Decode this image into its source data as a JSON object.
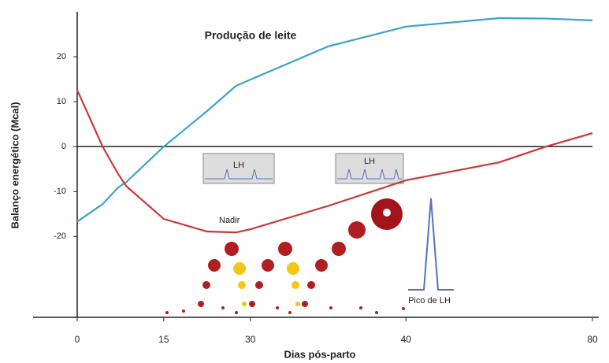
{
  "chart_data": {
    "type": "line",
    "annotations": {
      "title": "Produção de leite",
      "nadir": "Nadir",
      "lh_left": "LH",
      "lh_right": "LH",
      "lh_peak": "Pico de LH"
    },
    "y_label": "Balanço energético (Mcal)",
    "x_label": "Dias pós-parto",
    "x": [
      0,
      4.4,
      7.1,
      8.5,
      15,
      22.5,
      27.5,
      30,
      35,
      40,
      60,
      70,
      80
    ],
    "series": [
      {
        "color": "#3ba3c9",
        "values": [
          -16.7,
          -12.8,
          -9.1,
          -7.9,
          0,
          7.9,
          13.5,
          14.9,
          22.3,
          26.7,
          28.6,
          28.5,
          28.1
        ]
      },
      {
        "color": "#c9393a",
        "values": [
          12.6,
          0,
          -6.1,
          -8.8,
          -16.1,
          -18.9,
          -19.1,
          -18.4,
          -13.2,
          -7.5,
          -3.5,
          0,
          3
        ]
      }
    ],
    "xlim": [
      0,
      80
    ],
    "xticks": [
      0,
      15,
      30,
      40,
      80
    ],
    "ylim": [
      -38,
      30
    ],
    "yticks": [
      20,
      10,
      0,
      -10,
      -20
    ]
  }
}
